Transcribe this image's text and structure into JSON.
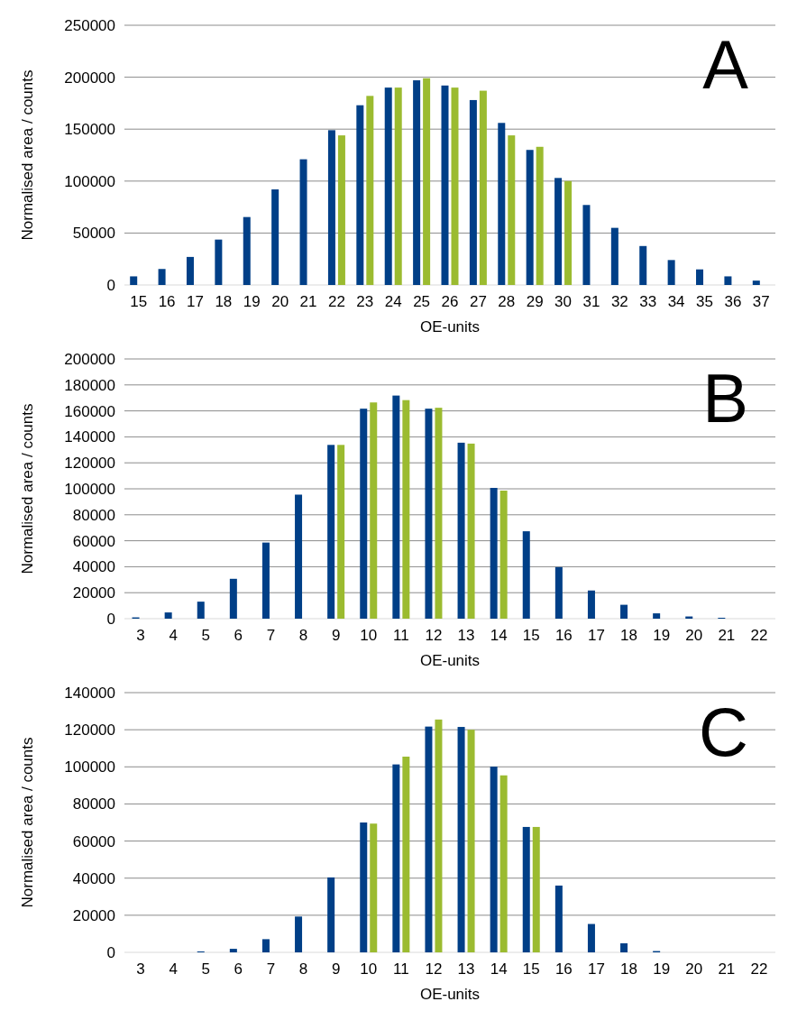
{
  "chart_data": [
    {
      "type": "bar",
      "xlabel": "OE-units",
      "ylabel": "Normalised area / counts",
      "annotations": [
        "A"
      ],
      "categories": [
        "15",
        "16",
        "17",
        "18",
        "19",
        "20",
        "21",
        "22",
        "23",
        "24",
        "25",
        "26",
        "27",
        "28",
        "29",
        "30",
        "31",
        "32",
        "33",
        "34",
        "35",
        "36",
        "37"
      ],
      "series": [
        {
          "color": "#003f87",
          "values": [
            8300,
            15400,
            27000,
            43700,
            65400,
            92000,
            121000,
            149000,
            173000,
            190000,
            197000,
            192000,
            178000,
            156000,
            130000,
            103000,
            77000,
            55000,
            37500,
            24000,
            15000,
            8300,
            4200
          ]
        },
        {
          "color": "#9bbb30",
          "values": [
            null,
            null,
            null,
            null,
            null,
            null,
            null,
            144000,
            182000,
            190000,
            199000,
            190000,
            187000,
            144000,
            133000,
            100000,
            null,
            null,
            null,
            null,
            null,
            null,
            null
          ]
        }
      ],
      "ylim": [
        0,
        250000
      ],
      "yticks": [
        0,
        50000,
        100000,
        150000,
        200000,
        250000
      ],
      "grid": "y"
    },
    {
      "type": "bar",
      "xlabel": "OE-units",
      "ylabel": "Normalised area / counts",
      "annotations": [
        "B"
      ],
      "categories": [
        "3",
        "4",
        "5",
        "6",
        "7",
        "8",
        "9",
        "10",
        "11",
        "12",
        "13",
        "14",
        "15",
        "16",
        "17",
        "18",
        "19",
        "20",
        "21",
        "22"
      ],
      "series": [
        {
          "color": "#003f87",
          "values": [
            1000,
            4800,
            13100,
            30700,
            58600,
            95500,
            133800,
            161700,
            171800,
            161700,
            135500,
            100700,
            67300,
            39700,
            21700,
            10700,
            4100,
            1700,
            700,
            0
          ]
        },
        {
          "color": "#9bbb30",
          "values": [
            null,
            null,
            null,
            null,
            null,
            null,
            133800,
            166500,
            168300,
            162400,
            134800,
            98600,
            null,
            null,
            null,
            null,
            null,
            null,
            null,
            null
          ]
        }
      ],
      "ylim": [
        0,
        200000
      ],
      "yticks": [
        0,
        20000,
        40000,
        60000,
        80000,
        100000,
        120000,
        140000,
        160000,
        180000,
        200000
      ],
      "grid": "y"
    },
    {
      "type": "bar",
      "xlabel": "OE-units",
      "ylabel": "Normalised area / counts",
      "annotations": [
        "C"
      ],
      "categories": [
        "3",
        "4",
        "5",
        "6",
        "7",
        "8",
        "9",
        "10",
        "11",
        "12",
        "13",
        "14",
        "15",
        "16",
        "17",
        "18",
        "19",
        "20",
        "21",
        "22"
      ],
      "series": [
        {
          "color": "#003f87",
          "values": [
            0,
            0,
            500,
            1900,
            7100,
            19300,
            40400,
            70000,
            101300,
            121700,
            121500,
            100100,
            67600,
            36000,
            15300,
            4900,
            700,
            0,
            0,
            0
          ]
        },
        {
          "color": "#9bbb30",
          "values": [
            null,
            null,
            null,
            null,
            null,
            null,
            null,
            69400,
            105500,
            125500,
            120000,
            95400,
            67600,
            null,
            null,
            null,
            null,
            null,
            null,
            null
          ]
        }
      ],
      "ylim": [
        0,
        140000
      ],
      "yticks": [
        0,
        20000,
        40000,
        60000,
        80000,
        100000,
        120000,
        140000
      ],
      "grid": "y"
    }
  ]
}
